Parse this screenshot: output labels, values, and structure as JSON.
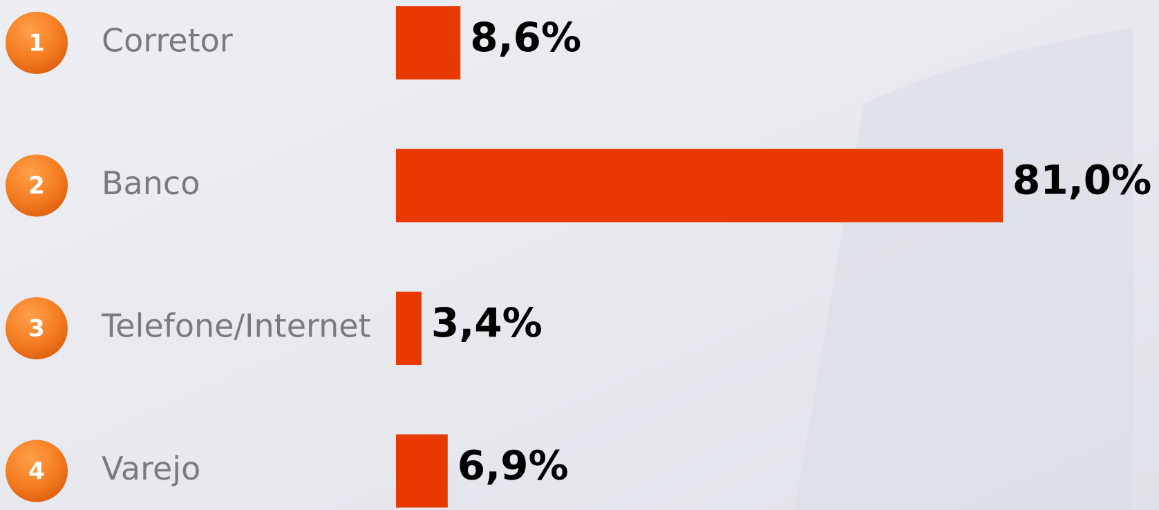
{
  "chart_data": {
    "type": "bar",
    "orientation": "horizontal",
    "numbers": [
      "1",
      "2",
      "3",
      "4"
    ],
    "categories": [
      "Corretor",
      "Banco",
      "Telefone/Internet",
      "Varejo"
    ],
    "values": [
      8.6,
      81.0,
      3.4,
      6.9
    ],
    "value_labels": [
      "8,6%",
      "81,0%",
      "3,4%",
      "6,9%"
    ],
    "color": "#e83a00"
  }
}
